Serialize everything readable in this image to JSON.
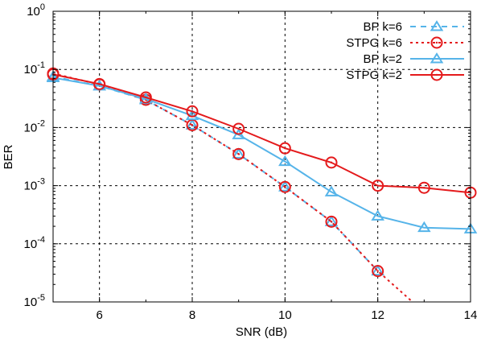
{
  "chart_data": {
    "type": "line",
    "title": "",
    "xlabel": "SNR (dB)",
    "ylabel": "BER",
    "xlim": [
      5,
      14
    ],
    "ylim": [
      1e-05,
      1
    ],
    "yscale": "log",
    "grid": true,
    "legend_position": "top-right",
    "x_ticks": [
      {
        "value": 6,
        "label": "6"
      },
      {
        "value": 8,
        "label": "8"
      },
      {
        "value": 10,
        "label": "10"
      },
      {
        "value": 12,
        "label": "12"
      },
      {
        "value": 14,
        "label": "14"
      }
    ],
    "y_ticks": [
      {
        "value": 1,
        "base": "10",
        "exp": "0"
      },
      {
        "value": 0.1,
        "base": "10",
        "exp": "-1"
      },
      {
        "value": 0.01,
        "base": "10",
        "exp": "-2"
      },
      {
        "value": 0.001,
        "base": "10",
        "exp": "-3"
      },
      {
        "value": 0.0001,
        "base": "10",
        "exp": "-4"
      },
      {
        "value": 1e-05,
        "base": "10",
        "exp": "-5"
      }
    ],
    "series": [
      {
        "name": "BP k=6",
        "color": "#56b4e9",
        "marker": "triangle",
        "line": "dashed",
        "x": [
          5,
          6,
          7,
          8,
          9,
          10,
          11,
          12
        ],
        "y": [
          0.075,
          0.052,
          0.03,
          0.011,
          0.0035,
          0.00095,
          0.00024,
          3.4e-05
        ]
      },
      {
        "name": "STPG k=6",
        "color": "#e41a1c",
        "marker": "circle",
        "line": "dotted",
        "x": [
          5,
          6,
          7,
          8,
          9,
          10,
          11,
          12,
          12.75
        ],
        "y": [
          0.085,
          0.055,
          0.03,
          0.011,
          0.0035,
          0.00095,
          0.00024,
          3.4e-05,
          1e-05
        ],
        "marker_count": 8
      },
      {
        "name": "BP k=2",
        "color": "#56b4e9",
        "marker": "triangle",
        "line": "solid",
        "x": [
          5,
          6,
          7,
          8,
          9,
          10,
          11,
          12,
          13,
          14
        ],
        "y": [
          0.072,
          0.052,
          0.031,
          0.016,
          0.0075,
          0.0026,
          0.00078,
          0.0003,
          0.00019,
          0.00018
        ]
      },
      {
        "name": "STPG k=2",
        "color": "#e41a1c",
        "marker": "circle",
        "line": "solid",
        "x": [
          5,
          6,
          7,
          8,
          9,
          10,
          11,
          12,
          13,
          14
        ],
        "y": [
          0.082,
          0.056,
          0.033,
          0.019,
          0.0095,
          0.0044,
          0.0025,
          0.001,
          0.00092,
          0.00076
        ]
      }
    ]
  }
}
